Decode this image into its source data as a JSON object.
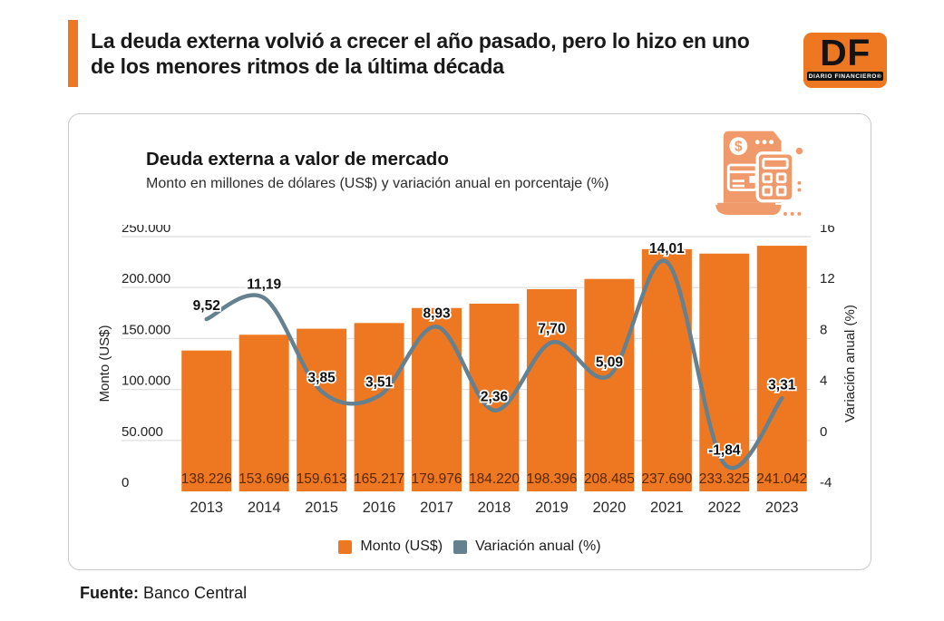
{
  "header": {
    "title_line1": "La deuda externa volvió a crecer el año pasado, pero lo hizo en uno",
    "title_line2": "de los menores ritmos de la última década",
    "logo_text": "DF",
    "logo_subtext": "DIARIO FINANCIERO®"
  },
  "card": {
    "title": "Deuda externa a valor de mercado",
    "subtitle": "Monto en millones de dólares (US$) y variación anual en porcentaje (%)",
    "icon": "receipt-calculator-icon"
  },
  "chart_data": {
    "type": "bar",
    "subtype": "bar+line-combo",
    "categories": [
      "2013",
      "2014",
      "2015",
      "2016",
      "2017",
      "2018",
      "2019",
      "2020",
      "2021",
      "2022",
      "2023"
    ],
    "series": [
      {
        "name": "Monto (US$)",
        "type": "bar",
        "color": "#EE7822",
        "values": [
          138226,
          153696,
          159613,
          165217,
          179976,
          184220,
          198396,
          208485,
          237690,
          233325,
          241042
        ],
        "labels": [
          "138.226",
          "153.696",
          "159.613",
          "165.217",
          "179.976",
          "184.220",
          "198.396",
          "208.485",
          "237.690",
          "233.325",
          "241.042"
        ]
      },
      {
        "name": "Variación anual (%)",
        "type": "line",
        "color": "#65818F",
        "values": [
          9.52,
          11.19,
          3.85,
          3.51,
          8.93,
          2.36,
          7.7,
          5.09,
          14.01,
          -1.84,
          3.31
        ],
        "labels": [
          "9,52",
          "11,19",
          "3,85",
          "3,51",
          "8,93",
          "2,36",
          "7,70",
          "5,09",
          "14,01",
          "-1,84",
          "3,31"
        ]
      }
    ],
    "left_axis": {
      "label": "Monto (US$)",
      "min": 0,
      "max": 250000,
      "tick_values": [
        0,
        50000,
        100000,
        150000,
        200000,
        250000
      ],
      "tick_labels": [
        "0",
        "50.000",
        "100.000",
        "150.000",
        "200.000",
        "250.000"
      ]
    },
    "right_axis": {
      "label": "Variación anual (%)",
      "min": -4,
      "max": 16,
      "tick_values": [
        -4,
        0,
        4,
        8,
        12,
        16
      ],
      "tick_labels": [
        "-4",
        "0",
        "4",
        "8",
        "12",
        "16"
      ]
    },
    "grid": true,
    "legend_position": "bottom",
    "legend": [
      {
        "label": "Monto (US$)",
        "color": "#EE7822"
      },
      {
        "label": "Variación anual (%)",
        "color": "#65818F"
      }
    ],
    "bar_label_color": "#5a2800",
    "grid_color": "#e2e2e2"
  },
  "footer": {
    "source_label": "Fuente:",
    "source_value": "Banco Central"
  }
}
